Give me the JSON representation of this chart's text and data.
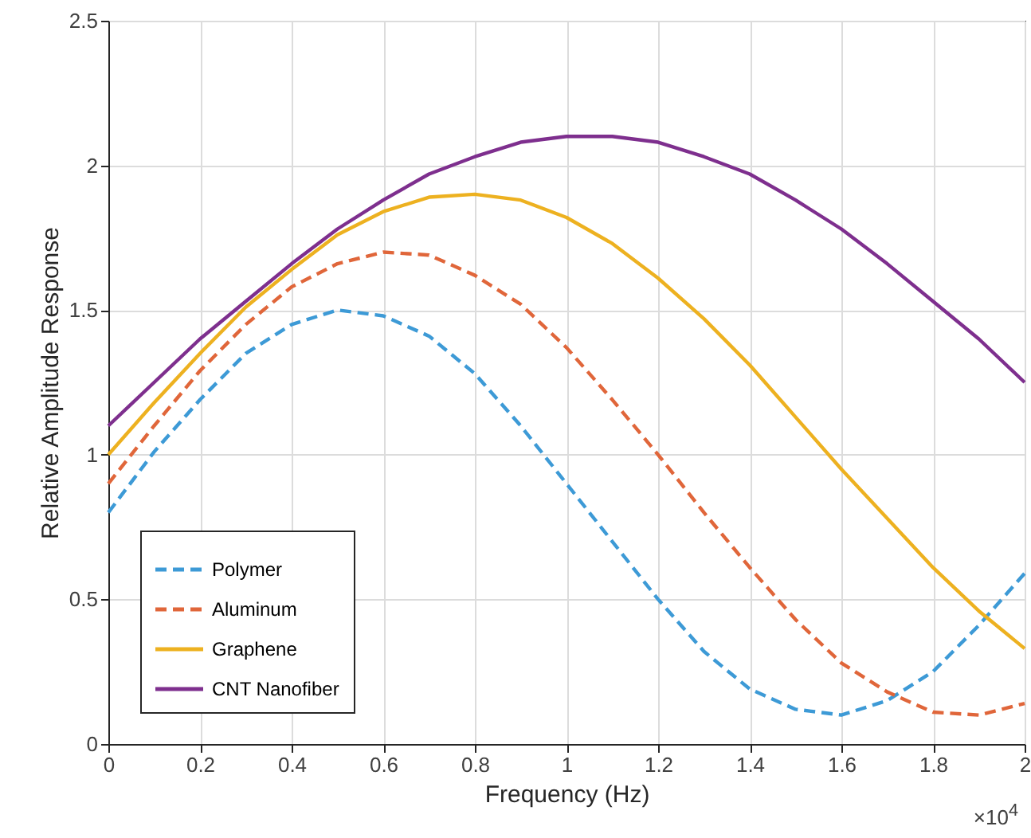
{
  "chart_data": {
    "type": "line",
    "xlabel": "Frequency (Hz)",
    "ylabel": "Relative Amplitude Response",
    "x": [
      0,
      0.1,
      0.2,
      0.3,
      0.4,
      0.5,
      0.6,
      0.7,
      0.8,
      0.9,
      1.0,
      1.1,
      1.2,
      1.3,
      1.4,
      1.5,
      1.6,
      1.7,
      1.8,
      1.9,
      2.0
    ],
    "series": [
      {
        "name": "Polymer",
        "color": "#3d9ad6",
        "line_style": "dashed",
        "values": [
          0.8,
          1.01,
          1.19,
          1.35,
          1.45,
          1.5,
          1.48,
          1.41,
          1.28,
          1.1,
          0.9,
          0.7,
          0.5,
          0.32,
          0.19,
          0.12,
          0.1,
          0.15,
          0.25,
          0.41,
          0.59
        ]
      },
      {
        "name": "Aluminum",
        "color": "#e0663a",
        "line_style": "dashed",
        "values": [
          0.9,
          1.1,
          1.29,
          1.45,
          1.58,
          1.66,
          1.7,
          1.69,
          1.62,
          1.52,
          1.37,
          1.19,
          1.0,
          0.8,
          0.61,
          0.43,
          0.28,
          0.18,
          0.11,
          0.1,
          0.14
        ]
      },
      {
        "name": "Graphene",
        "color": "#edb120",
        "line_style": "solid",
        "values": [
          1.0,
          1.18,
          1.35,
          1.51,
          1.64,
          1.76,
          1.84,
          1.89,
          1.9,
          1.88,
          1.82,
          1.73,
          1.61,
          1.47,
          1.31,
          1.13,
          0.95,
          0.78,
          0.61,
          0.46,
          0.33
        ]
      },
      {
        "name": "CNT Nanofiber",
        "color": "#7e2f8e",
        "line_style": "solid",
        "values": [
          1.1,
          1.25,
          1.4,
          1.53,
          1.66,
          1.78,
          1.88,
          1.97,
          2.03,
          2.08,
          2.1,
          2.1,
          2.08,
          2.03,
          1.97,
          1.88,
          1.78,
          1.66,
          1.53,
          1.4,
          1.25
        ]
      }
    ],
    "xlim": [
      0,
      2
    ],
    "xticks": [
      0,
      0.2,
      0.4,
      0.6,
      0.8,
      1,
      1.2,
      1.4,
      1.6,
      1.8,
      2
    ],
    "ylim": [
      0,
      2.5
    ],
    "yticks": [
      0,
      0.5,
      1,
      1.5,
      2,
      2.5
    ],
    "grid": true,
    "legend": "bottom left",
    "annotations": [
      "×10$^{4}$"
    ]
  }
}
